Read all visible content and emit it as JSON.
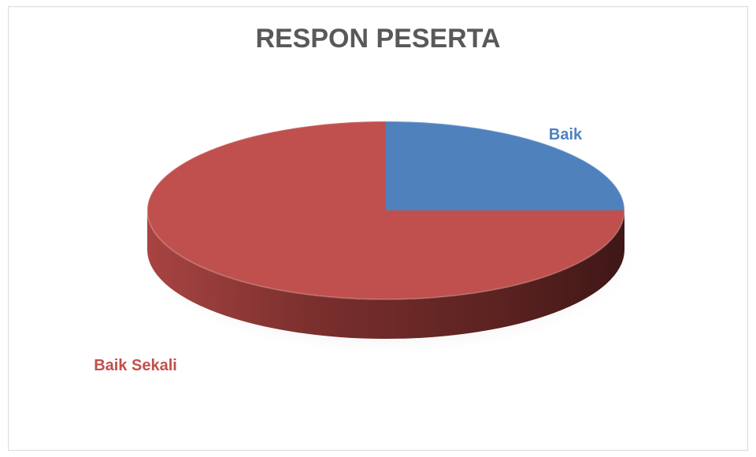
{
  "chart_data": {
    "type": "pie",
    "title": "RESPON PESERTA",
    "categories": [
      "Baik",
      "Baik Sekali"
    ],
    "values": [
      25,
      75
    ],
    "colors": [
      "#4F81BD",
      "#C0504D"
    ],
    "legend": "none",
    "labels_shown": [
      "category"
    ]
  }
}
